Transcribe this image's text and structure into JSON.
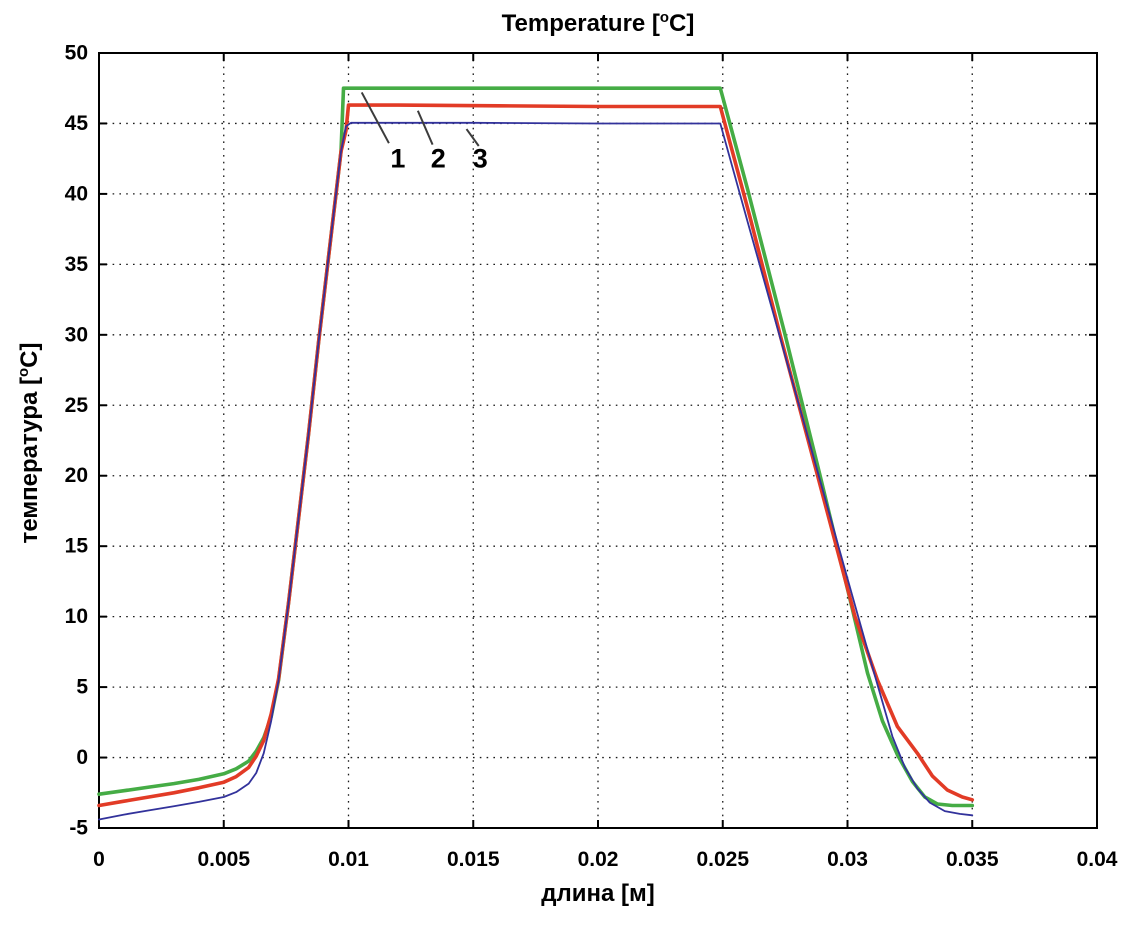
{
  "figure": {
    "title": {
      "prefix": "Temperature [",
      "sup": "o",
      "suffix": "C]"
    },
    "ylabel": {
      "prefix": "температура [",
      "sup": "o",
      "suffix": "C]"
    },
    "xlabel": "длина [м]"
  },
  "chart_data": {
    "type": "line",
    "title": "Temperature [°C]",
    "xlabel": "длина [м]",
    "ylabel": "температура [°C]",
    "xlim": [
      0,
      0.04
    ],
    "ylim": [
      -5,
      50
    ],
    "grid": true,
    "legend_position": "none",
    "background": "#ffffff",
    "axis_color": "#000000",
    "grid_color": "#1a1a1a",
    "annotation_color": "#3c3c3c",
    "x_ticks": [
      0,
      0.005,
      0.01,
      0.015,
      0.02,
      0.025,
      0.03,
      0.035,
      0.04
    ],
    "x_tick_labels": [
      "0",
      "0.005",
      "0.01",
      "0.015",
      "0.02",
      "0.025",
      "0.03",
      "0.035",
      "0.04"
    ],
    "y_ticks": [
      -5,
      0,
      5,
      10,
      15,
      20,
      25,
      30,
      35,
      40,
      45,
      50
    ],
    "y_tick_labels": [
      "-5",
      "0",
      "5",
      "10",
      "15",
      "20",
      "25",
      "30",
      "35",
      "40",
      "45",
      "50"
    ],
    "series": [
      {
        "name": "1",
        "color": "#45ac45",
        "width": 3.6,
        "plateau_value": 47.5,
        "points": [
          [
            0,
            -2.6
          ],
          [
            0.001,
            -2.35
          ],
          [
            0.002,
            -2.1
          ],
          [
            0.003,
            -1.85
          ],
          [
            0.004,
            -1.55
          ],
          [
            0.005,
            -1.15
          ],
          [
            0.0055,
            -0.8
          ],
          [
            0.006,
            -0.25
          ],
          [
            0.0063,
            0.45
          ],
          [
            0.0066,
            1.4
          ],
          [
            0.0069,
            2.9
          ],
          [
            0.0072,
            5.5
          ],
          [
            0.0076,
            11
          ],
          [
            0.008,
            17
          ],
          [
            0.0084,
            23
          ],
          [
            0.0088,
            29.5
          ],
          [
            0.0092,
            35.5
          ],
          [
            0.0095,
            40
          ],
          [
            0.0097,
            43
          ],
          [
            0.0098,
            47.5
          ],
          [
            0.011,
            47.5
          ],
          [
            0.015,
            47.5
          ],
          [
            0.02,
            47.5
          ],
          [
            0.0249,
            47.5
          ],
          [
            0.026,
            40.3
          ],
          [
            0.0275,
            30
          ],
          [
            0.0289,
            20
          ],
          [
            0.0302,
            10.5
          ],
          [
            0.0308,
            6
          ],
          [
            0.0314,
            2.6
          ],
          [
            0.032,
            0.2
          ],
          [
            0.0326,
            -1.7
          ],
          [
            0.0331,
            -2.8
          ],
          [
            0.0336,
            -3.3
          ],
          [
            0.0342,
            -3.4
          ],
          [
            0.035,
            -3.4
          ]
        ]
      },
      {
        "name": "2",
        "color": "#e23b26",
        "width": 3.6,
        "plateau_value": 46.3,
        "points": [
          [
            0,
            -3.4
          ],
          [
            0.001,
            -3.1
          ],
          [
            0.002,
            -2.8
          ],
          [
            0.003,
            -2.5
          ],
          [
            0.004,
            -2.15
          ],
          [
            0.005,
            -1.75
          ],
          [
            0.0055,
            -1.35
          ],
          [
            0.006,
            -0.7
          ],
          [
            0.0063,
            0.1
          ],
          [
            0.0066,
            1.2
          ],
          [
            0.0069,
            3.1
          ],
          [
            0.0072,
            5.6
          ],
          [
            0.0076,
            11
          ],
          [
            0.008,
            17
          ],
          [
            0.0084,
            23
          ],
          [
            0.0088,
            29.5
          ],
          [
            0.0092,
            35.5
          ],
          [
            0.0095,
            40
          ],
          [
            0.0097,
            43
          ],
          [
            0.0099,
            44.5
          ],
          [
            0.01,
            46.3
          ],
          [
            0.012,
            46.3
          ],
          [
            0.016,
            46.25
          ],
          [
            0.02,
            46.2
          ],
          [
            0.0249,
            46.2
          ],
          [
            0.0261,
            38.3
          ],
          [
            0.0273,
            30
          ],
          [
            0.0288,
            20
          ],
          [
            0.0303,
            10
          ],
          [
            0.0312,
            5.5
          ],
          [
            0.032,
            2.2
          ],
          [
            0.0328,
            0.3
          ],
          [
            0.0334,
            -1.3
          ],
          [
            0.034,
            -2.3
          ],
          [
            0.0346,
            -2.8
          ],
          [
            0.035,
            -3.0
          ]
        ]
      },
      {
        "name": "3",
        "color": "#32329b",
        "width": 1.8,
        "plateau_value": 45.0,
        "points": [
          [
            0,
            -4.4
          ],
          [
            0.001,
            -4.05
          ],
          [
            0.002,
            -3.75
          ],
          [
            0.003,
            -3.45
          ],
          [
            0.004,
            -3.15
          ],
          [
            0.005,
            -2.8
          ],
          [
            0.0055,
            -2.45
          ],
          [
            0.006,
            -1.85
          ],
          [
            0.0063,
            -1.1
          ],
          [
            0.0066,
            0.3
          ],
          [
            0.0069,
            2.6
          ],
          [
            0.0072,
            5.5
          ],
          [
            0.0076,
            11
          ],
          [
            0.008,
            17
          ],
          [
            0.0084,
            23
          ],
          [
            0.0088,
            29.5
          ],
          [
            0.0092,
            35.5
          ],
          [
            0.0095,
            40
          ],
          [
            0.0097,
            43
          ],
          [
            0.0099,
            44.8
          ],
          [
            0.0101,
            45.05
          ],
          [
            0.015,
            45.05
          ],
          [
            0.02,
            45.0
          ],
          [
            0.0249,
            45.0
          ],
          [
            0.026,
            38
          ],
          [
            0.027,
            31.7
          ],
          [
            0.0285,
            22.2
          ],
          [
            0.03,
            12.7
          ],
          [
            0.031,
            6.4
          ],
          [
            0.0318,
            1.5
          ],
          [
            0.0323,
            -0.7
          ],
          [
            0.0328,
            -2.2
          ],
          [
            0.0333,
            -3.2
          ],
          [
            0.0339,
            -3.8
          ],
          [
            0.0345,
            -4.0
          ],
          [
            0.035,
            -4.1
          ]
        ]
      }
    ],
    "annotations": [
      {
        "label": "1",
        "text": [
          0.01198,
          42.5
        ],
        "line": [
          0.01053,
          47.2,
          0.01162,
          43.6
        ]
      },
      {
        "label": "2",
        "text": [
          0.0136,
          42.5
        ],
        "line": [
          0.01278,
          45.9,
          0.01337,
          43.5
        ]
      },
      {
        "label": "3",
        "text": [
          0.01528,
          42.5
        ],
        "line": [
          0.01473,
          44.6,
          0.01522,
          43.4
        ]
      }
    ]
  }
}
